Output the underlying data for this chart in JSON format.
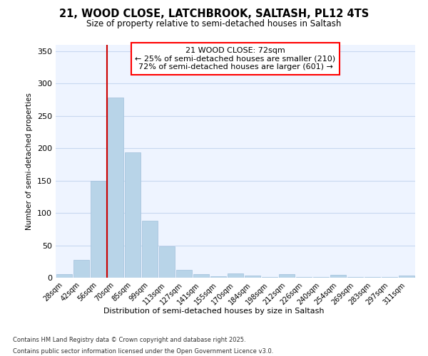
{
  "title1": "21, WOOD CLOSE, LATCHBROOK, SALTASH, PL12 4TS",
  "title2": "Size of property relative to semi-detached houses in Saltash",
  "xlabel": "Distribution of semi-detached houses by size in Saltash",
  "ylabel": "Number of semi-detached properties",
  "categories": [
    "28sqm",
    "42sqm",
    "56sqm",
    "70sqm",
    "85sqm",
    "99sqm",
    "113sqm",
    "127sqm",
    "141sqm",
    "155sqm",
    "170sqm",
    "184sqm",
    "198sqm",
    "212sqm",
    "226sqm",
    "240sqm",
    "254sqm",
    "269sqm",
    "283sqm",
    "297sqm",
    "311sqm"
  ],
  "values": [
    5,
    28,
    150,
    278,
    193,
    88,
    48,
    12,
    6,
    2,
    7,
    3,
    1,
    5,
    1,
    1,
    4,
    1,
    1,
    1,
    3
  ],
  "bar_color": "#b8d4e8",
  "bar_edge_color": "#a0c0dc",
  "vline_color": "#cc0000",
  "vline_x_idx": 3,
  "ylim": [
    0,
    360
  ],
  "yticks": [
    0,
    50,
    100,
    150,
    200,
    250,
    300,
    350
  ],
  "annotation_title": "21 WOOD CLOSE: 72sqm",
  "annotation_line1": "← 25% of semi-detached houses are smaller (210)",
  "annotation_line2": "72% of semi-detached houses are larger (601) →",
  "footer1": "Contains HM Land Registry data © Crown copyright and database right 2025.",
  "footer2": "Contains public sector information licensed under the Open Government Licence v3.0.",
  "bg_color": "#ffffff",
  "plot_bg_color": "#eef4ff"
}
